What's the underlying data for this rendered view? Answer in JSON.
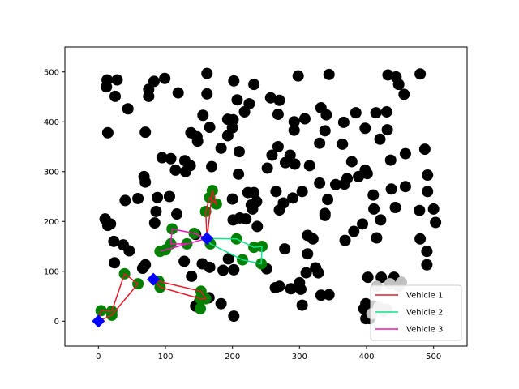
{
  "chart_data": {
    "type": "scatter",
    "title": "",
    "xlabel": "",
    "ylabel": "",
    "xlim": [
      -50,
      550
    ],
    "ylim": [
      -50,
      550
    ],
    "x_ticks": [
      0,
      100,
      200,
      300,
      400,
      500
    ],
    "y_ticks": [
      0,
      100,
      200,
      300,
      400,
      500
    ],
    "grid": false,
    "legend_position": "bottom-right",
    "colors": {
      "customer": "#000000",
      "served_customer": "#008000",
      "depot": "#0000ff",
      "unserved_cluster": "#c0c0c0"
    },
    "customers": [
      [
        12,
        470
      ],
      [
        13,
        484
      ],
      [
        28,
        484
      ],
      [
        25,
        451
      ],
      [
        14,
        378
      ],
      [
        44,
        426
      ],
      [
        75,
        465
      ],
      [
        75,
        451
      ],
      [
        83,
        481
      ],
      [
        99,
        487
      ],
      [
        119,
        458
      ],
      [
        70,
        379
      ],
      [
        68,
        290
      ],
      [
        70,
        279
      ],
      [
        84,
        197
      ],
      [
        86,
        220
      ],
      [
        88,
        248
      ],
      [
        106,
        250
      ],
      [
        117,
        215
      ],
      [
        108,
        326
      ],
      [
        95,
        328
      ],
      [
        115,
        303
      ],
      [
        130,
        300
      ],
      [
        129,
        322
      ],
      [
        137,
        312
      ],
      [
        138,
        378
      ],
      [
        147,
        370
      ],
      [
        148,
        361
      ],
      [
        156,
        413
      ],
      [
        166,
        389
      ],
      [
        162,
        456
      ],
      [
        162,
        497
      ],
      [
        193,
        405
      ],
      [
        202,
        482
      ],
      [
        201,
        404
      ],
      [
        200,
        388
      ],
      [
        193,
        372
      ],
      [
        207,
        444
      ],
      [
        218,
        420
      ],
      [
        225,
        436
      ],
      [
        232,
        475
      ],
      [
        257,
        448
      ],
      [
        270,
        443
      ],
      [
        268,
        415
      ],
      [
        292,
        400
      ],
      [
        292,
        383
      ],
      [
        298,
        492
      ],
      [
        308,
        406
      ],
      [
        332,
        428
      ],
      [
        340,
        414
      ],
      [
        344,
        495
      ],
      [
        338,
        382
      ],
      [
        330,
        357
      ],
      [
        315,
        312
      ],
      [
        293,
        315
      ],
      [
        279,
        318
      ],
      [
        286,
        333
      ],
      [
        259,
        333
      ],
      [
        252,
        307
      ],
      [
        268,
        350
      ],
      [
        265,
        260
      ],
      [
        276,
        237
      ],
      [
        270,
        223
      ],
      [
        290,
        247
      ],
      [
        304,
        260
      ],
      [
        338,
        212
      ],
      [
        338,
        216
      ],
      [
        330,
        277
      ],
      [
        342,
        244
      ],
      [
        354,
        274
      ],
      [
        367,
        275
      ],
      [
        371,
        286
      ],
      [
        364,
        355
      ],
      [
        366,
        399
      ],
      [
        384,
        418
      ],
      [
        378,
        320
      ],
      [
        388,
        290
      ],
      [
        398,
        303
      ],
      [
        401,
        296
      ],
      [
        398,
        387
      ],
      [
        420,
        365
      ],
      [
        414,
        418
      ],
      [
        430,
        420
      ],
      [
        431,
        384
      ],
      [
        432,
        494
      ],
      [
        444,
        490
      ],
      [
        448,
        475
      ],
      [
        456,
        455
      ],
      [
        458,
        336
      ],
      [
        458,
        270
      ],
      [
        436,
        323
      ],
      [
        437,
        265
      ],
      [
        443,
        228
      ],
      [
        410,
        253
      ],
      [
        411,
        225
      ],
      [
        394,
        195
      ],
      [
        381,
        180
      ],
      [
        368,
        162
      ],
      [
        415,
        167
      ],
      [
        421,
        203
      ],
      [
        480,
        496
      ],
      [
        487,
        345
      ],
      [
        491,
        293
      ],
      [
        491,
        260
      ],
      [
        500,
        225
      ],
      [
        503,
        198
      ],
      [
        479,
        222
      ],
      [
        480,
        165
      ],
      [
        490,
        140
      ],
      [
        490,
        113
      ],
      [
        441,
        88
      ],
      [
        438,
        80
      ],
      [
        422,
        88
      ],
      [
        402,
        88
      ],
      [
        399,
        35
      ],
      [
        396,
        25
      ],
      [
        399,
        5
      ],
      [
        405,
        5
      ],
      [
        410,
        30
      ],
      [
        220,
        205
      ],
      [
        228,
        233
      ],
      [
        230,
        225
      ],
      [
        232,
        258
      ],
      [
        223,
        258
      ],
      [
        236,
        240
      ],
      [
        237,
        190
      ],
      [
        211,
        207
      ],
      [
        201,
        203
      ],
      [
        210,
        340
      ],
      [
        209,
        295
      ],
      [
        183,
        347
      ],
      [
        169,
        310
      ],
      [
        251,
        105
      ],
      [
        278,
        145
      ],
      [
        312,
        135
      ],
      [
        312,
        172
      ],
      [
        320,
        165
      ],
      [
        324,
        107
      ],
      [
        328,
        97
      ],
      [
        310,
        97
      ],
      [
        300,
        77
      ],
      [
        302,
        64
      ],
      [
        304,
        32
      ],
      [
        287,
        65
      ],
      [
        270,
        70
      ],
      [
        264,
        67
      ],
      [
        332,
        52
      ],
      [
        344,
        53
      ],
      [
        186,
        102
      ],
      [
        202,
        103
      ],
      [
        194,
        125
      ],
      [
        200,
        245
      ],
      [
        202,
        10
      ],
      [
        183,
        35
      ],
      [
        165,
        47
      ],
      [
        151,
        40
      ],
      [
        145,
        30
      ],
      [
        139,
        90
      ],
      [
        128,
        120
      ],
      [
        155,
        115
      ],
      [
        166,
        108
      ],
      [
        145,
        174
      ],
      [
        24,
        117
      ],
      [
        18,
        195
      ],
      [
        10,
        205
      ],
      [
        14,
        192
      ],
      [
        23,
        160
      ],
      [
        37,
        153
      ],
      [
        46,
        141
      ],
      [
        40,
        242
      ],
      [
        59,
        246
      ],
      [
        66,
        106
      ],
      [
        70,
        113
      ]
    ],
    "served_customers": [
      [
        4,
        21
      ],
      [
        20,
        20
      ],
      [
        20,
        12
      ],
      [
        39,
        95
      ],
      [
        59,
        75
      ],
      [
        92,
        68
      ],
      [
        90,
        80
      ],
      [
        110,
        185
      ],
      [
        108,
        155
      ],
      [
        132,
        155
      ],
      [
        143,
        176
      ],
      [
        152,
        45
      ],
      [
        160,
        45
      ],
      [
        152,
        25
      ],
      [
        153,
        60
      ],
      [
        160,
        220
      ],
      [
        166,
        248
      ],
      [
        176,
        235
      ],
      [
        170,
        262
      ],
      [
        167,
        155
      ],
      [
        206,
        165
      ],
      [
        215,
        123
      ],
      [
        232,
        148
      ],
      [
        244,
        150
      ],
      [
        243,
        115
      ],
      [
        92,
        140
      ],
      [
        100,
        143
      ]
    ],
    "unserved_cluster": [
      [
        415,
        70
      ],
      [
        435,
        75
      ],
      [
        448,
        70
      ],
      [
        452,
        78
      ],
      [
        418,
        28
      ],
      [
        430,
        24
      ],
      [
        408,
        15
      ],
      [
        425,
        20
      ]
    ],
    "depots": [
      [
        0,
        0
      ],
      [
        82,
        84
      ],
      [
        162,
        166
      ]
    ],
    "legend": [
      "Vehicle 1",
      "Vehicle 2",
      "Vehicle 3"
    ],
    "series": [
      {
        "name": "Vehicle 1",
        "color": "#e6192b",
        "routes": [
          [
            [
              0,
              0
            ],
            [
              4,
              21
            ],
            [
              20,
              20
            ],
            [
              39,
              95
            ],
            [
              59,
              75
            ],
            [
              20,
              12
            ],
            [
              0,
              0
            ]
          ],
          [
            [
              82,
              84
            ],
            [
              92,
              68
            ],
            [
              152,
              45
            ],
            [
              160,
              45
            ],
            [
              153,
              60
            ],
            [
              90,
              80
            ],
            [
              82,
              84
            ]
          ],
          [
            [
              162,
              166
            ],
            [
              160,
              220
            ],
            [
              166,
              248
            ],
            [
              176,
              235
            ],
            [
              170,
              262
            ],
            [
              162,
              166
            ]
          ]
        ]
      },
      {
        "name": "Vehicle 2",
        "color": "#12e08a",
        "routes": [
          [
            [
              162,
              166
            ],
            [
              206,
              165
            ],
            [
              232,
              148
            ],
            [
              244,
              150
            ],
            [
              243,
              115
            ],
            [
              215,
              123
            ],
            [
              167,
              155
            ],
            [
              162,
              166
            ]
          ]
        ]
      },
      {
        "name": "Vehicle 3",
        "color": "#e619b4",
        "routes": [
          [
            [
              162,
              166
            ],
            [
              143,
              176
            ],
            [
              110,
              185
            ],
            [
              108,
              155
            ],
            [
              132,
              155
            ],
            [
              92,
              140
            ],
            [
              162,
              166
            ]
          ]
        ]
      }
    ]
  }
}
